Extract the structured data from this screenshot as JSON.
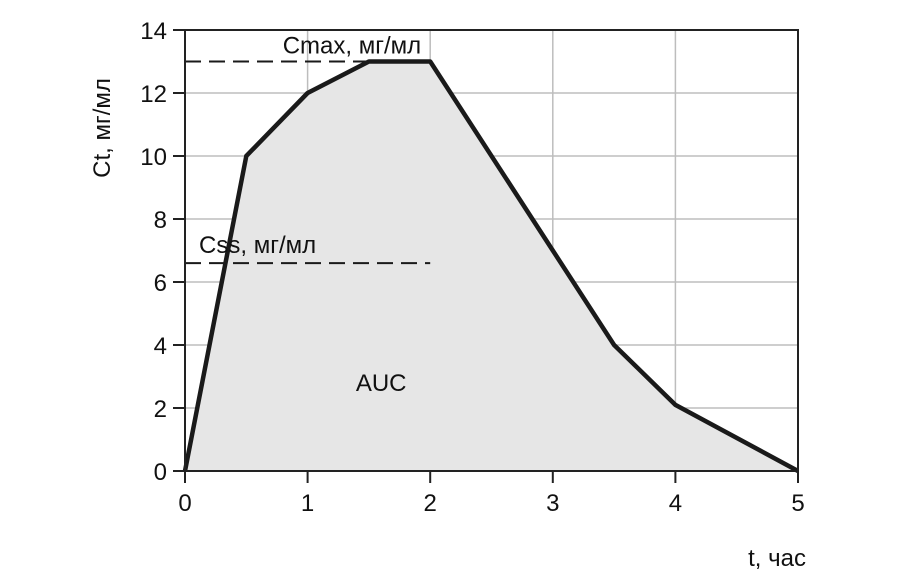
{
  "chart_data": {
    "type": "area",
    "xlabel": "t, час",
    "ylabel": "Ct, мг/мл",
    "xlim": [
      0,
      5
    ],
    "ylim": [
      0,
      14
    ],
    "x_ticks": [
      0,
      1,
      2,
      3,
      4,
      5
    ],
    "y_ticks": [
      0,
      2,
      4,
      6,
      8,
      10,
      12,
      14
    ],
    "grid": true,
    "series": [
      {
        "x": [
          0,
          0.5,
          1,
          1.5,
          2,
          3,
          3.5,
          4,
          5
        ],
        "y": [
          0,
          10,
          12,
          13,
          13,
          7,
          4,
          2.1,
          0
        ]
      }
    ],
    "annotations": {
      "cmax": {
        "label": "Cmax, мг/мл",
        "y": 13,
        "x_range": [
          0,
          1.5
        ]
      },
      "css": {
        "label": "Css, мг/мл",
        "y": 6.6,
        "x_range": [
          0,
          2
        ]
      },
      "auc": {
        "label": "AUC",
        "x": 1.6,
        "y": 2.8
      }
    },
    "colors": {
      "fill": "#e6e6e6",
      "line": "#1a1a1a",
      "grid": "#bdbdbd",
      "frame": "#222222"
    }
  }
}
